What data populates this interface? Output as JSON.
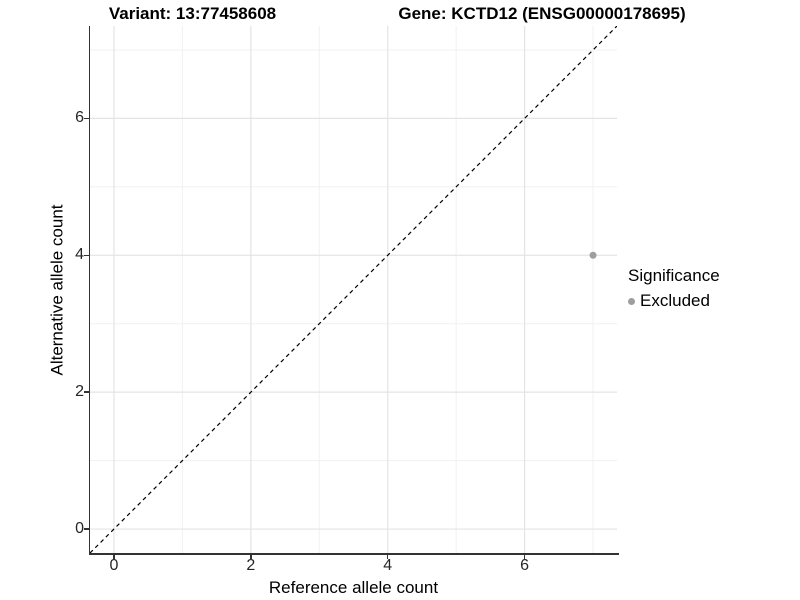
{
  "titles": {
    "variant": "Variant: 13:77458608",
    "gene": "Gene: KCTD12 (ENSG00000178695)"
  },
  "chart_data": {
    "type": "scatter",
    "xlabel": "Reference allele count",
    "ylabel": "Alternative allele count",
    "xlim": [
      -0.35,
      7.35
    ],
    "ylim": [
      -0.35,
      7.35
    ],
    "x_major_ticks": [
      0,
      2,
      4,
      6
    ],
    "y_major_ticks": [
      0,
      2,
      4,
      6
    ],
    "x_minor_gridlines": [
      1,
      3,
      5,
      7
    ],
    "y_minor_gridlines": [
      1,
      3,
      5,
      7
    ],
    "grid": true,
    "points": [
      {
        "x": 7,
        "y": 4,
        "series": "Excluded"
      }
    ],
    "identity_line": {
      "from": [
        -0.35,
        -0.35
      ],
      "to": [
        7.35,
        7.35
      ],
      "style": "dashed",
      "color": "#000000"
    },
    "legend": {
      "title": "Significance",
      "position": "right",
      "items": [
        {
          "label": "Excluded",
          "color": "#9e9e9e"
        }
      ]
    },
    "colors": {
      "point": "#9e9e9e",
      "major_grid": "#e4e4e4",
      "minor_grid": "#f1f1f1",
      "axis_line": "#333333",
      "tick_text": "#262626"
    }
  }
}
